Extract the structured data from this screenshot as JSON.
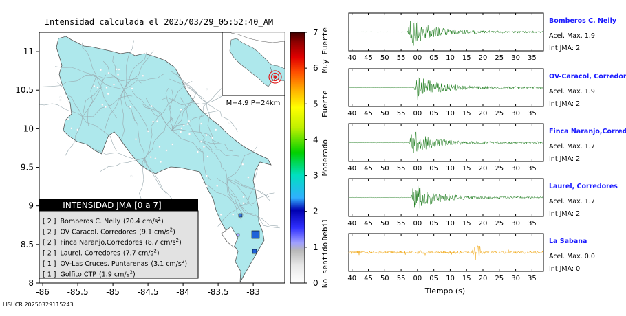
{
  "map": {
    "title": "Intensidad calculada el 2025/03/29_05:52:40_AM",
    "y_ticks": [
      "11",
      "10.5",
      "10",
      "9.5",
      "9",
      "8.5",
      "8"
    ],
    "x_ticks": [
      "-86",
      "-85.5",
      "-85",
      "-84.5",
      "-84",
      "-83.5",
      "-83"
    ],
    "inset_label": "M=4.9 P=24km",
    "footer_id": "LISUCR 20250329115243",
    "colors": {
      "land": "#aee8ec",
      "sea": "#ffffff",
      "roads": "#9aaab0"
    }
  },
  "legend": {
    "title": "INTENSIDAD JMA [0 a 7]",
    "rows": [
      {
        "level": "[ 2 ]",
        "name": "Bomberos C. Neily",
        "pga": "(20.4 cm/s",
        "exp": "2",
        "close": ")"
      },
      {
        "level": "[ 2 ]",
        "name": "OV-Caracol. Corredores",
        "pga": "(9.1 cm/s",
        "exp": "2",
        "close": ")"
      },
      {
        "level": "[ 2 ]",
        "name": "Finca Naranjo.Corredores",
        "pga": "(8.7 cm/s",
        "exp": "2",
        "close": ")"
      },
      {
        "level": "[ 2 ]",
        "name": "Laurel. Corredores",
        "pga": "(7.7 cm/s",
        "exp": "2",
        "close": ")"
      },
      {
        "level": "[ 1 ]",
        "name": "OV-Las Cruces. Puntarenas",
        "pga": "(3.1 cm/s",
        "exp": "2",
        "close": ")"
      },
      {
        "level": "[ 1 ]",
        "name": "Golfito CTP",
        "pga": "(1.9 cm/s",
        "exp": "2",
        "close": ")"
      }
    ]
  },
  "colorbar": {
    "ticks": [
      "0",
      "1",
      "2",
      "3",
      "4",
      "5",
      "6",
      "7"
    ],
    "categories": [
      "No sentido",
      "Debil",
      "Moderado",
      "Fuerte",
      "Muy Fuerte"
    ]
  },
  "traces": {
    "x_tick_labels": [
      "40",
      "45",
      "50",
      "55",
      "00",
      "05",
      "10",
      "15",
      "20",
      "25",
      "30",
      "35"
    ],
    "xlabel": "Tiempo (s)",
    "panels": [
      {
        "station": "Bomberos C. Neily",
        "acel": "Acel. Max. 1.9",
        "int": "Int JMA: 2",
        "color": "#1a7a1a",
        "onset": 57,
        "amp": 1.0
      },
      {
        "station": "OV-Caracol, Corredores",
        "acel": "Acel. Max. 1.9",
        "int": "Int JMA: 2",
        "color": "#1a7a1a",
        "onset": 59,
        "amp": 0.85
      },
      {
        "station": "Finca Naranjo,Corredores",
        "acel": "Acel. Max. 1.7",
        "int": "Int JMA: 2",
        "color": "#1a7a1a",
        "onset": 57.5,
        "amp": 0.8
      },
      {
        "station": "Laurel, Corredores",
        "acel": "Acel. Max. 1.7",
        "int": "Int JMA: 2",
        "color": "#1a7a1a",
        "onset": 58,
        "amp": 0.9
      },
      {
        "station": "La Sabana",
        "acel": "Acel. Max. 0.0",
        "int": "Int JMA: 0",
        "color": "#f0a000",
        "onset": 0,
        "amp": 0.25
      }
    ]
  },
  "chart_data": [
    {
      "type": "heatmap",
      "title": "Intensidad calculada el 2025/03/29_05:52:40_AM",
      "xlim": [
        -86.05,
        -82.55
      ],
      "ylim": [
        8.0,
        11.25
      ],
      "colorbar_range": [
        0,
        7
      ],
      "stations": [
        {
          "name": "Bomberos C. Neily",
          "intensity": 2,
          "pga": 20.4
        },
        {
          "name": "OV-Caracol. Corredores",
          "intensity": 2,
          "pga": 9.1
        },
        {
          "name": "Finca Naranjo.Corredores",
          "intensity": 2,
          "pga": 8.7
        },
        {
          "name": "Laurel. Corredores",
          "intensity": 2,
          "pga": 7.7
        },
        {
          "name": "OV-Las Cruces. Puntarenas",
          "intensity": 1,
          "pga": 3.1
        },
        {
          "name": "Golfito CTP",
          "intensity": 1,
          "pga": 1.9
        }
      ]
    },
    {
      "type": "line",
      "xlabel": "Tiempo (s)",
      "x_ticks": [
        "40",
        "45",
        "50",
        "55",
        "00",
        "05",
        "10",
        "15",
        "20",
        "25",
        "30",
        "35"
      ],
      "series": [
        {
          "name": "Bomberos C. Neily",
          "acel_max": 1.9,
          "int_jma": 2
        },
        {
          "name": "OV-Caracol, Corredores",
          "acel_max": 1.9,
          "int_jma": 2
        },
        {
          "name": "Finca Naranjo,Corredores",
          "acel_max": 1.7,
          "int_jma": 2
        },
        {
          "name": "Laurel, Corredores",
          "acel_max": 1.7,
          "int_jma": 2
        },
        {
          "name": "La Sabana",
          "acel_max": 0.0,
          "int_jma": 0
        }
      ]
    }
  ]
}
